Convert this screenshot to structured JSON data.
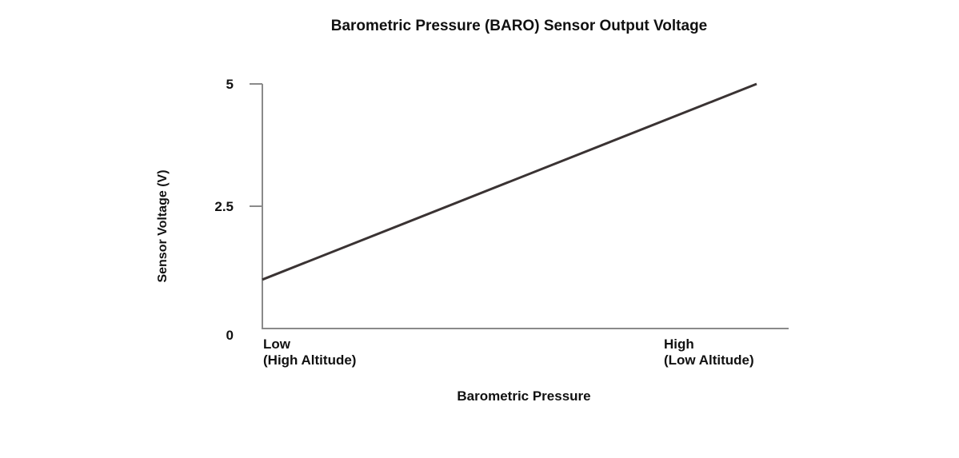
{
  "chart_data": {
    "type": "line",
    "title": "Barometric Pressure (BARO) Sensor Output Voltage",
    "xlabel": "Barometric Pressure",
    "ylabel": "Sensor Voltage (V)",
    "ylim": [
      0,
      5
    ],
    "y_ticks": [
      "0",
      "2.5",
      "5"
    ],
    "x_tick_labels": [
      {
        "line1": "Low",
        "line2": "(High Altitude)"
      },
      {
        "line1": "High",
        "line2": "(Low Altitude)"
      }
    ],
    "grid": false,
    "series": [
      {
        "x": [
          "Low",
          "High"
        ],
        "values": [
          1.0,
          5.0
        ],
        "color": "#3a3333"
      }
    ],
    "axis_color": "#8a8a8a"
  }
}
